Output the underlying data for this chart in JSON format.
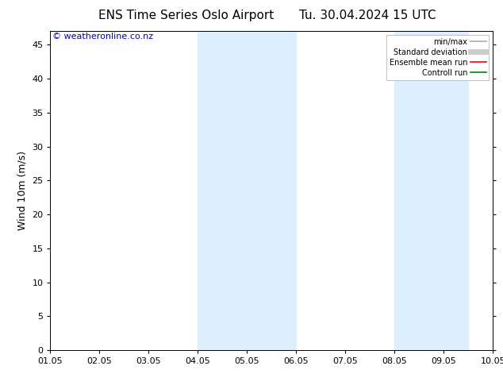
{
  "title_left": "ENS Time Series Oslo Airport",
  "title_right": "Tu. 30.04.2024 15 UTC",
  "ylabel": "Wind 10m (m/s)",
  "xlabel_ticks": [
    "01.05",
    "02.05",
    "03.05",
    "04.05",
    "05.05",
    "06.05",
    "07.05",
    "08.05",
    "09.05",
    "10.05"
  ],
  "xlim": [
    0,
    9
  ],
  "ylim": [
    0,
    47
  ],
  "yticks": [
    0,
    5,
    10,
    15,
    20,
    25,
    30,
    35,
    40,
    45
  ],
  "shaded_regions": [
    {
      "xstart": 3.0,
      "xend": 5.0,
      "color": "#ddeeff"
    },
    {
      "xstart": 7.0,
      "xend": 8.5,
      "color": "#ddeeff"
    }
  ],
  "watermark_text": "© weatheronline.co.nz",
  "watermark_color": "#0000bb",
  "background_color": "#ffffff",
  "legend_items": [
    {
      "label": "min/max",
      "color": "#aaaaaa",
      "lw": 1.2,
      "style": "solid"
    },
    {
      "label": "Standard deviation",
      "color": "#cccccc",
      "lw": 5,
      "style": "solid"
    },
    {
      "label": "Ensemble mean run",
      "color": "#ff0000",
      "lw": 1.2,
      "style": "solid"
    },
    {
      "label": "Controll run",
      "color": "#008000",
      "lw": 1.2,
      "style": "solid"
    }
  ],
  "title_fontsize": 11,
  "tick_fontsize": 8,
  "ylabel_fontsize": 9,
  "watermark_fontsize": 8
}
